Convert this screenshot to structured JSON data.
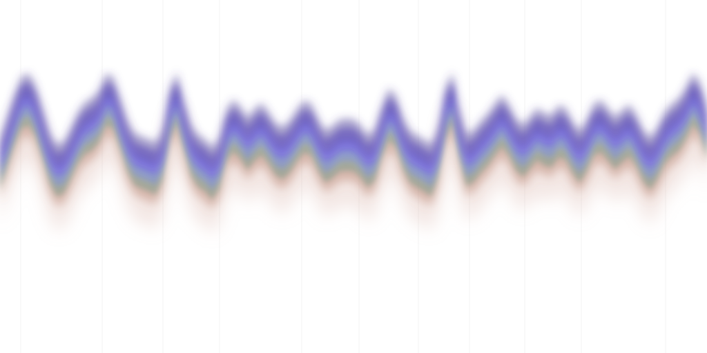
{
  "chart_data": {
    "type": "area",
    "title": "",
    "xlabel": "",
    "ylabel": "",
    "grid": true,
    "legend": "none",
    "x": [
      0,
      1,
      2,
      3,
      4,
      5,
      6,
      7,
      8,
      9,
      10,
      11,
      12,
      13,
      14,
      15,
      16,
      17,
      18,
      19,
      20,
      21,
      22,
      23,
      24,
      25,
      26,
      27,
      28,
      29,
      30,
      31,
      32,
      33,
      34,
      35,
      36,
      37,
      38,
      39,
      40,
      41,
      42,
      43,
      44,
      45,
      46,
      47,
      48,
      49,
      50,
      51,
      52,
      53,
      54,
      55,
      56,
      57,
      58,
      59,
      60,
      61,
      62,
      63,
      64,
      65,
      66,
      67,
      68,
      69,
      70,
      71,
      72,
      73,
      74,
      75,
      76,
      77,
      78,
      79,
      80,
      81,
      82,
      83,
      84,
      85,
      86,
      87,
      88,
      89,
      90,
      91,
      92,
      93,
      94,
      95,
      96,
      97,
      98,
      99,
      100
    ],
    "series": [
      {
        "color": "#4a3c96",
        "opacity": 0.5,
        "blur": 6,
        "values": [
          -0.5,
          0.0,
          0.5,
          0.9,
          0.99,
          0.73,
          0.21,
          -0.35,
          -0.65,
          -0.59,
          -0.27,
          0.09,
          0.32,
          0.41,
          0.59,
          0.98,
          0.91,
          0.43,
          -0.08,
          -0.39,
          -0.47,
          -0.53,
          -0.61,
          -0.29,
          0.64,
          1.0,
          0.4,
          -0.18,
          -0.43,
          -0.53,
          -0.72,
          -0.49,
          0.15,
          0.38,
          0.22,
          -0.04,
          0.17,
          0.3,
          0.09,
          -0.17,
          -0.25,
          -0.1,
          0.16,
          0.36,
          0.29,
          -0.06,
          -0.33,
          -0.23,
          -0.08,
          -0.06,
          -0.07,
          -0.21,
          -0.44,
          -0.3,
          0.24,
          0.64,
          0.48,
          -0.03,
          -0.34,
          -0.44,
          -0.54,
          -0.65,
          -0.22,
          0.67,
          1.0,
          0.16,
          -0.42,
          -0.32,
          -0.11,
          0.06,
          0.29,
          0.49,
          0.27,
          -0.06,
          -0.2,
          0.0,
          0.19,
          0.06,
          0.02,
          0.25,
          0.19,
          -0.12,
          -0.34,
          -0.07,
          0.29,
          0.37,
          0.18,
          -0.02,
          0.14,
          0.27,
          0.04,
          -0.32,
          -0.49,
          -0.25,
          0.1,
          0.28,
          0.4,
          0.66,
          0.99,
          0.79,
          0.21
        ]
      },
      {
        "color": "#6554e0",
        "opacity": 0.6,
        "blur": 5,
        "values": [
          -0.5,
          0.0,
          0.5,
          0.9,
          0.99,
          0.73,
          0.21,
          -0.35,
          -0.65,
          -0.59,
          -0.27,
          0.09,
          0.32,
          0.41,
          0.59,
          0.98,
          0.91,
          0.43,
          -0.08,
          -0.39,
          -0.47,
          -0.53,
          -0.61,
          -0.29,
          0.64,
          1.0,
          0.4,
          -0.18,
          -0.43,
          -0.53,
          -0.72,
          -0.49,
          0.15,
          0.38,
          0.22,
          -0.04,
          0.17,
          0.3,
          0.09,
          -0.17,
          -0.25,
          -0.1,
          0.16,
          0.36,
          0.29,
          -0.06,
          -0.33,
          -0.23,
          -0.08,
          -0.06,
          -0.07,
          -0.21,
          -0.44,
          -0.3,
          0.24,
          0.64,
          0.48,
          -0.03,
          -0.34,
          -0.44,
          -0.54,
          -0.65,
          -0.22,
          0.67,
          1.0,
          0.16,
          -0.42,
          -0.32,
          -0.11,
          0.06,
          0.29,
          0.49,
          0.27,
          -0.06,
          -0.2,
          0.0,
          0.19,
          0.06,
          0.02,
          0.25,
          0.19,
          -0.12,
          -0.34,
          -0.07,
          0.29,
          0.37,
          0.18,
          -0.02,
          0.14,
          0.27,
          0.04,
          -0.32,
          -0.49,
          -0.25,
          0.1,
          0.28,
          0.4,
          0.66,
          0.99,
          0.79,
          0.21
        ]
      },
      {
        "color": "#7a88d8",
        "opacity": 0.55,
        "blur": 4,
        "values": [
          -0.5,
          0.0,
          0.5,
          0.9,
          0.99,
          0.73,
          0.21,
          -0.35,
          -0.65,
          -0.59,
          -0.27,
          0.09,
          0.32,
          0.41,
          0.59,
          0.98,
          0.91,
          0.43,
          -0.08,
          -0.39,
          -0.47,
          -0.53,
          -0.61,
          -0.29,
          0.64,
          1.0,
          0.4,
          -0.18,
          -0.43,
          -0.53,
          -0.72,
          -0.49,
          0.15,
          0.38,
          0.22,
          -0.04,
          0.17,
          0.3,
          0.09,
          -0.17,
          -0.25,
          -0.1,
          0.16,
          0.36,
          0.29,
          -0.06,
          -0.33,
          -0.23,
          -0.08,
          -0.06,
          -0.07,
          -0.21,
          -0.44,
          -0.3,
          0.24,
          0.64,
          0.48,
          -0.03,
          -0.34,
          -0.44,
          -0.54,
          -0.65,
          -0.22,
          0.67,
          1.0,
          0.16,
          -0.42,
          -0.32,
          -0.11,
          0.06,
          0.29,
          0.49,
          0.27,
          -0.06,
          -0.2,
          0.0,
          0.19,
          0.06,
          0.02,
          0.25,
          0.19,
          -0.12,
          -0.34,
          -0.07,
          0.29,
          0.37,
          0.18,
          -0.02,
          0.14,
          0.27,
          0.04,
          -0.32,
          -0.49,
          -0.25,
          0.1,
          0.28,
          0.4,
          0.66,
          0.99,
          0.79,
          0.21
        ]
      },
      {
        "color": "#6f9a8a",
        "opacity": 0.5,
        "blur": 4,
        "values": [
          -0.5,
          0.0,
          0.5,
          0.9,
          0.99,
          0.73,
          0.21,
          -0.35,
          -0.65,
          -0.59,
          -0.27,
          0.09,
          0.32,
          0.41,
          0.59,
          0.98,
          0.91,
          0.43,
          -0.08,
          -0.39,
          -0.47,
          -0.53,
          -0.61,
          -0.29,
          0.64,
          1.0,
          0.4,
          -0.18,
          -0.43,
          -0.53,
          -0.72,
          -0.49,
          0.15,
          0.38,
          0.22,
          -0.04,
          0.17,
          0.3,
          0.09,
          -0.17,
          -0.25,
          -0.1,
          0.16,
          0.36,
          0.29,
          -0.06,
          -0.33,
          -0.23,
          -0.08,
          -0.06,
          -0.07,
          -0.21,
          -0.44,
          -0.3,
          0.24,
          0.64,
          0.48,
          -0.03,
          -0.34,
          -0.44,
          -0.54,
          -0.65,
          -0.22,
          0.67,
          1.0,
          0.16,
          -0.42,
          -0.32,
          -0.11,
          0.06,
          0.29,
          0.49,
          0.27,
          -0.06,
          -0.2,
          0.0,
          0.19,
          0.06,
          0.02,
          0.25,
          0.19,
          -0.12,
          -0.34,
          -0.07,
          0.29,
          0.37,
          0.18,
          -0.02,
          0.14,
          0.27,
          0.04,
          -0.32,
          -0.49,
          -0.25,
          0.1,
          0.28,
          0.4,
          0.66,
          0.99,
          0.79,
          0.21
        ]
      },
      {
        "color": "#b27862",
        "opacity": 0.45,
        "blur": 7,
        "values": [
          -0.5,
          0.0,
          0.5,
          0.9,
          0.99,
          0.73,
          0.21,
          -0.35,
          -0.65,
          -0.59,
          -0.27,
          0.09,
          0.32,
          0.41,
          0.59,
          0.98,
          0.91,
          0.43,
          -0.08,
          -0.39,
          -0.47,
          -0.53,
          -0.61,
          -0.29,
          0.64,
          1.0,
          0.4,
          -0.18,
          -0.43,
          -0.53,
          -0.72,
          -0.49,
          0.15,
          0.38,
          0.22,
          -0.04,
          0.17,
          0.3,
          0.09,
          -0.17,
          -0.25,
          -0.1,
          0.16,
          0.36,
          0.29,
          -0.06,
          -0.33,
          -0.23,
          -0.08,
          -0.06,
          -0.07,
          -0.21,
          -0.44,
          -0.3,
          0.24,
          0.64,
          0.48,
          -0.03,
          -0.34,
          -0.44,
          -0.54,
          -0.65,
          -0.22,
          0.67,
          1.0,
          0.16,
          -0.42,
          -0.32,
          -0.11,
          0.06,
          0.29,
          0.49,
          0.27,
          -0.06,
          -0.2,
          0.0,
          0.19,
          0.06,
          0.02,
          0.25,
          0.19,
          -0.12,
          -0.34,
          -0.07,
          0.29,
          0.37,
          0.18,
          -0.02,
          0.14,
          0.27,
          0.04,
          -0.32,
          -0.49,
          -0.25,
          0.1,
          0.28,
          0.4,
          0.66,
          0.99,
          0.79,
          0.21
        ]
      },
      {
        "color": "#d8b0a4",
        "opacity": 0.3,
        "blur": 12,
        "values": [
          -0.5,
          0.0,
          0.5,
          0.9,
          0.99,
          0.73,
          0.21,
          -0.35,
          -0.65,
          -0.59,
          -0.27,
          0.09,
          0.32,
          0.41,
          0.59,
          0.98,
          0.91,
          0.43,
          -0.08,
          -0.39,
          -0.47,
          -0.53,
          -0.61,
          -0.29,
          0.64,
          1.0,
          0.4,
          -0.18,
          -0.43,
          -0.53,
          -0.72,
          -0.49,
          0.15,
          0.38,
          0.22,
          -0.04,
          0.17,
          0.3,
          0.09,
          -0.17,
          -0.25,
          -0.1,
          0.16,
          0.36,
          0.29,
          -0.06,
          -0.33,
          -0.23,
          -0.08,
          -0.06,
          -0.07,
          -0.21,
          -0.44,
          -0.3,
          0.24,
          0.64,
          0.48,
          -0.03,
          -0.34,
          -0.44,
          -0.54,
          -0.65,
          -0.22,
          0.67,
          1.0,
          0.16,
          -0.42,
          -0.32,
          -0.11,
          0.06,
          0.29,
          0.49,
          0.27,
          -0.06,
          -0.2,
          0.0,
          0.19,
          0.06,
          0.02,
          0.25,
          0.19,
          -0.12,
          -0.34,
          -0.07,
          0.29,
          0.37,
          0.18,
          -0.02,
          0.14,
          0.27,
          0.04,
          -0.32,
          -0.49,
          -0.25,
          0.1,
          0.28,
          0.4,
          0.66,
          0.99,
          0.79,
          0.21
        ]
      }
    ]
  }
}
